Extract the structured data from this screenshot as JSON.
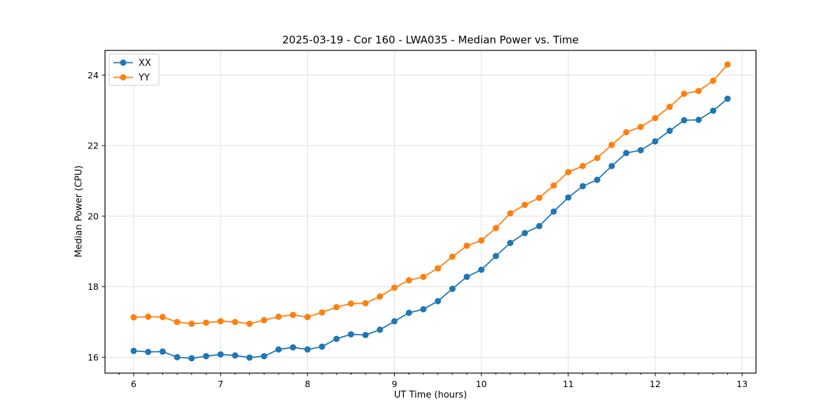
{
  "title": "2025-03-19 - Cor 160 - LWA035 - Median Power vs. Time",
  "chart_data": {
    "type": "line",
    "title": "2025-03-19 - Cor 160 - LWA035 - Median Power vs. Time",
    "xlabel": "UT Time (hours)",
    "ylabel": "Median Power (CPU)",
    "legend_position": "upper left",
    "grid": true,
    "grid_color": "#e0e0e0",
    "spine_color": "#000000",
    "background_color": "#ffffff",
    "marker": "o",
    "xlim": [
      5.67,
      13.16
    ],
    "ylim": [
      15.55,
      24.7
    ],
    "x_ticks": [
      6,
      7,
      8,
      9,
      10,
      11,
      12,
      13
    ],
    "y_ticks": [
      16,
      18,
      20,
      22,
      24
    ],
    "x_minor_step": 0.1667,
    "x": [
      6.0,
      6.167,
      6.333,
      6.5,
      6.667,
      6.833,
      7.0,
      7.167,
      7.333,
      7.5,
      7.667,
      7.833,
      8.0,
      8.167,
      8.333,
      8.5,
      8.667,
      8.833,
      9.0,
      9.167,
      9.333,
      9.5,
      9.667,
      9.833,
      10.0,
      10.167,
      10.333,
      10.5,
      10.667,
      10.833,
      11.0,
      11.167,
      11.333,
      11.5,
      11.667,
      11.833,
      12.0,
      12.167,
      12.333,
      12.5,
      12.667,
      12.833
    ],
    "series": [
      {
        "name": "XX",
        "color": "#1f77b4",
        "values": [
          16.18,
          16.15,
          16.16,
          16.0,
          15.97,
          16.03,
          16.08,
          16.05,
          15.99,
          16.03,
          16.22,
          16.28,
          16.22,
          16.3,
          16.52,
          16.65,
          16.63,
          16.78,
          17.02,
          17.26,
          17.36,
          17.59,
          17.94,
          18.28,
          18.48,
          18.87,
          19.24,
          19.52,
          19.72,
          20.13,
          20.53,
          20.85,
          21.03,
          21.42,
          21.79,
          21.87,
          22.12,
          22.42,
          22.72,
          22.73,
          22.99,
          23.33
        ]
      },
      {
        "name": "YY",
        "color": "#ff7f0e",
        "values": [
          17.13,
          17.15,
          17.14,
          17.0,
          16.95,
          16.98,
          17.02,
          17.0,
          16.95,
          17.05,
          17.15,
          17.2,
          17.14,
          17.27,
          17.42,
          17.52,
          17.53,
          17.72,
          17.97,
          18.18,
          18.28,
          18.52,
          18.85,
          19.16,
          19.31,
          19.66,
          20.08,
          20.32,
          20.52,
          20.87,
          21.25,
          21.42,
          21.65,
          22.02,
          22.38,
          22.53,
          22.78,
          23.1,
          23.47,
          23.55,
          23.84,
          24.3
        ]
      }
    ]
  }
}
